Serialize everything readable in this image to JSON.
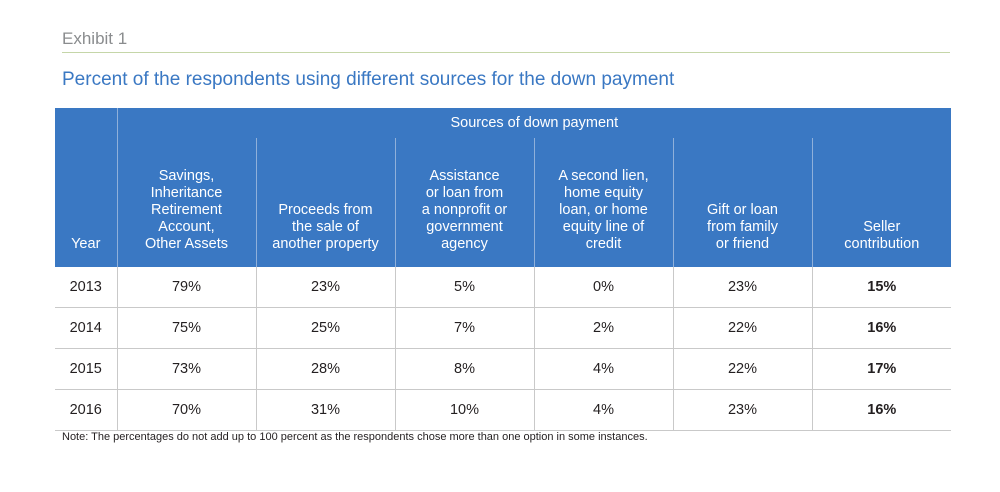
{
  "exhibit_label": "Exhibit 1",
  "title": "Percent of the respondents using different sources for the down payment",
  "table": {
    "year_header": "Year",
    "group_header": "Sources of down payment",
    "columns": [
      [
        "Savings,",
        "Inheritance",
        "Retirement",
        "Account,",
        "Other Assets"
      ],
      [
        "Proceeds from",
        "the sale of",
        "another property"
      ],
      [
        "Assistance",
        "or loan from",
        "a nonprofit or",
        "government",
        "agency"
      ],
      [
        "A second lien,",
        "home equity",
        "loan, or home",
        "equity line of",
        "credit"
      ],
      [
        "Gift or loan",
        "from family",
        "or friend"
      ],
      [
        "Seller",
        "contribution"
      ]
    ],
    "rows": [
      {
        "year": "2013",
        "values": [
          "79%",
          "23%",
          "5%",
          "0%",
          "23%",
          "15%"
        ]
      },
      {
        "year": "2014",
        "values": [
          "75%",
          "25%",
          "7%",
          "2%",
          "22%",
          "16%"
        ]
      },
      {
        "year": "2015",
        "values": [
          "73%",
          "28%",
          "8%",
          "4%",
          "22%",
          "17%"
        ]
      },
      {
        "year": "2016",
        "values": [
          "70%",
          "31%",
          "10%",
          "4%",
          "23%",
          "16%"
        ]
      }
    ]
  },
  "note": "Note: The percentages do not add up to 100 percent as the respondents chose more than one option in some instances.",
  "colors": {
    "header_blue": "#3a78c3",
    "title_blue": "#3a78c3",
    "rule_green": "#c5d6a8",
    "label_gray": "#8a8c8e"
  }
}
